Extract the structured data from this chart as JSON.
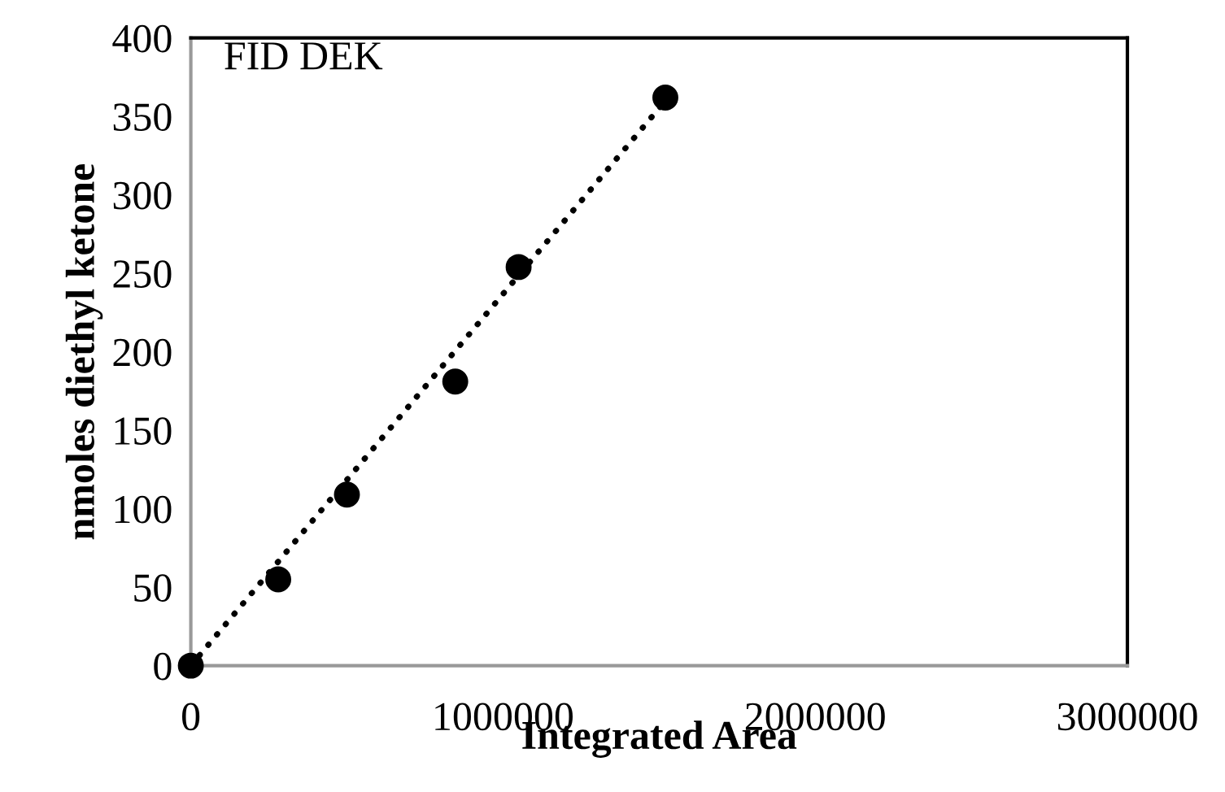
{
  "chart_data": {
    "type": "scatter",
    "xlabel": "Integrated Area",
    "ylabel": "nmoles diethyl ketone",
    "annotations": [
      "FID DEK"
    ],
    "xlim": [
      0,
      3000000
    ],
    "xticks": [
      0,
      1000000,
      2000000,
      3000000
    ],
    "ylim": [
      0,
      400
    ],
    "yticks": [
      0,
      50,
      100,
      150,
      200,
      250,
      300,
      350,
      400
    ],
    "grid": false,
    "legend": false,
    "series": [
      {
        "color": "#000000",
        "marker": "circle",
        "x": [
          0,
          280000,
          500000,
          847000,
          1050000,
          1520000
        ],
        "values": [
          0,
          55,
          109,
          181,
          254,
          362
        ]
      },
      {
        "type": "line",
        "color": "#000000",
        "line_style": "dotted",
        "marker": "none",
        "x": [
          0,
          1520000
        ],
        "values": [
          0,
          360
        ]
      }
    ]
  }
}
